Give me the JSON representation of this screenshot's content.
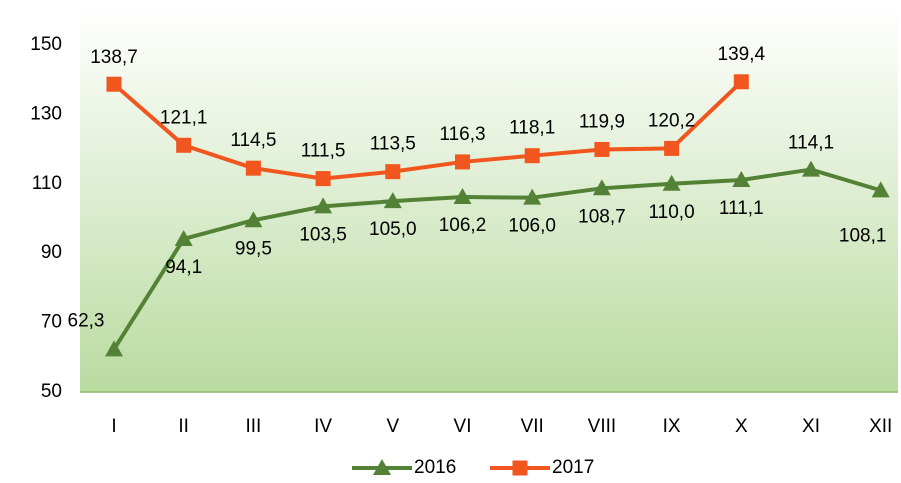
{
  "chart_data": {
    "type": "line",
    "categories": [
      "I",
      "II",
      "III",
      "IV",
      "V",
      "VI",
      "VII",
      "VIII",
      "IX",
      "X",
      "XI",
      "XII"
    ],
    "series": [
      {
        "name": "2016",
        "color": "#538135",
        "marker": "triangle",
        "values": [
          62.3,
          94.1,
          99.5,
          103.5,
          105.0,
          106.2,
          106.0,
          108.7,
          110.0,
          111.1,
          114.1,
          108.1
        ],
        "value_labels": [
          "62,3",
          "94,1",
          "99,5",
          "103,5",
          "105,0",
          "106,2",
          "106,0",
          "108,7",
          "110,0",
          "111,1",
          "114,1",
          "108,1"
        ]
      },
      {
        "name": "2017",
        "color": "#f0561d",
        "marker": "square",
        "values": [
          138.7,
          121.1,
          114.5,
          111.5,
          113.5,
          116.3,
          118.1,
          119.9,
          120.2,
          139.4,
          null,
          null
        ],
        "value_labels": [
          "138,7",
          "121,1",
          "114,5",
          "111,5",
          "113,5",
          "116,3",
          "118,1",
          "119,9",
          "120,2",
          "139,4",
          null,
          null
        ]
      }
    ],
    "ylim": [
      50,
      150
    ],
    "yticks": [
      50,
      70,
      90,
      110,
      130,
      150
    ],
    "grid": false,
    "legend": "bottom"
  }
}
